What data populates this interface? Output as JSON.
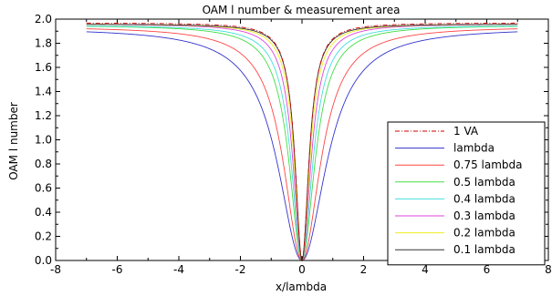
{
  "chart_data": {
    "type": "line",
    "title": "OAM l number & measurement area",
    "xlabel": "x/lambda",
    "ylabel": "OAM l number",
    "xlim": [
      -8,
      8
    ],
    "ylim": [
      0,
      2
    ],
    "xticks": [
      -8,
      -6,
      -4,
      -2,
      0,
      2,
      4,
      6,
      8
    ],
    "yticks": [
      0.0,
      0.2,
      0.4,
      0.6,
      0.8,
      1.0,
      1.2,
      1.4,
      1.6,
      1.8,
      2.0
    ],
    "ytick_labels": [
      "0.0",
      "0.2",
      "0.4",
      "0.6",
      "0.8",
      "1.0",
      "1.2",
      "1.4",
      "1.6",
      "1.8",
      "2.0"
    ],
    "grid": false,
    "legend_position": "bottom-right",
    "x_range": [
      -7,
      7
    ],
    "series": [
      {
        "name": "1 VA",
        "color": "#cc0000",
        "dash": "dashdot",
        "max": 1.97,
        "half_width": 0.27
      },
      {
        "name": "lambda",
        "color": "#3333cc",
        "dash": "solid",
        "max": 1.93,
        "half_width": 0.95
      },
      {
        "name": "0.75 lambda",
        "color": "#ff4444",
        "dash": "solid",
        "max": 1.94,
        "half_width": 0.72
      },
      {
        "name": "0.5 lambda",
        "color": "#44dd44",
        "dash": "solid",
        "max": 1.95,
        "half_width": 0.5
      },
      {
        "name": "0.4 lambda",
        "color": "#44dddd",
        "dash": "solid",
        "max": 1.95,
        "half_width": 0.42
      },
      {
        "name": "0.3 lambda",
        "color": "#dd44dd",
        "dash": "solid",
        "max": 1.96,
        "half_width": 0.35
      },
      {
        "name": "0.2 lambda",
        "color": "#eeee22",
        "dash": "solid",
        "max": 1.96,
        "half_width": 0.3
      },
      {
        "name": "0.1 lambda",
        "color": "#333333",
        "dash": "solid",
        "max": 1.96,
        "half_width": 0.27
      }
    ]
  }
}
